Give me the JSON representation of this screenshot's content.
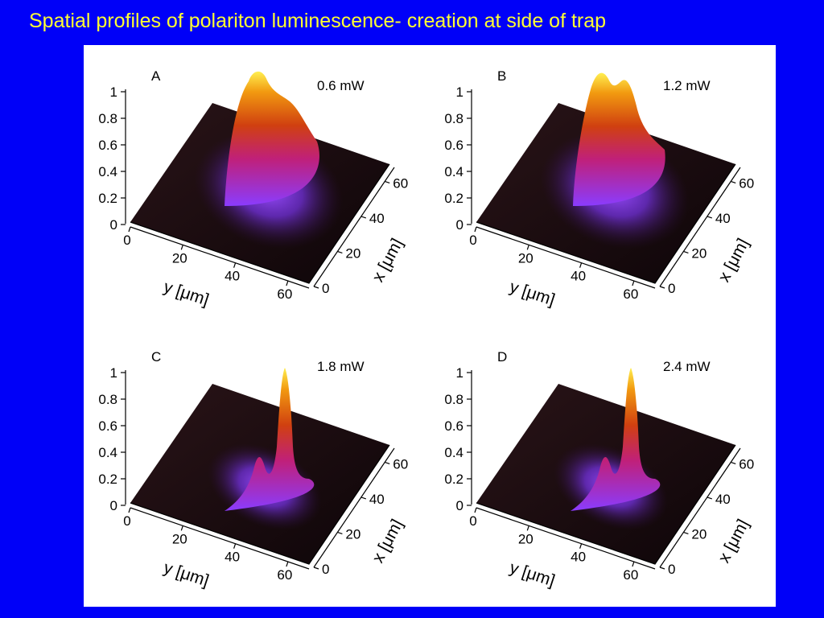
{
  "slide": {
    "title": "Spatial profiles of polariton luminescence- creation at side of trap"
  },
  "colors": {
    "background": "#0000f8",
    "title": "#ffff33",
    "figure_bg": "#ffffff"
  },
  "axes": {
    "z_ticks": [
      "1",
      "0.8",
      "0.6",
      "0.4",
      "0.2",
      "0"
    ],
    "y_ticks": [
      "0",
      "20",
      "40",
      "60"
    ],
    "x_ticks": [
      "0",
      "20",
      "40",
      "60"
    ],
    "y_label": "y [μm]",
    "x_label": "x [μm]"
  },
  "panels": [
    {
      "letter": "A",
      "power": "0.6 mW",
      "peak": "broad",
      "colormap": "hot-purple"
    },
    {
      "letter": "B",
      "power": "1.2 mW",
      "peak": "broad-double",
      "colormap": "hot-purple"
    },
    {
      "letter": "C",
      "power": "1.8 mW",
      "peak": "narrow-side",
      "colormap": "hot-purple"
    },
    {
      "letter": "D",
      "power": "2.4 mW",
      "peak": "narrow-side",
      "colormap": "hot-purple"
    }
  ]
}
